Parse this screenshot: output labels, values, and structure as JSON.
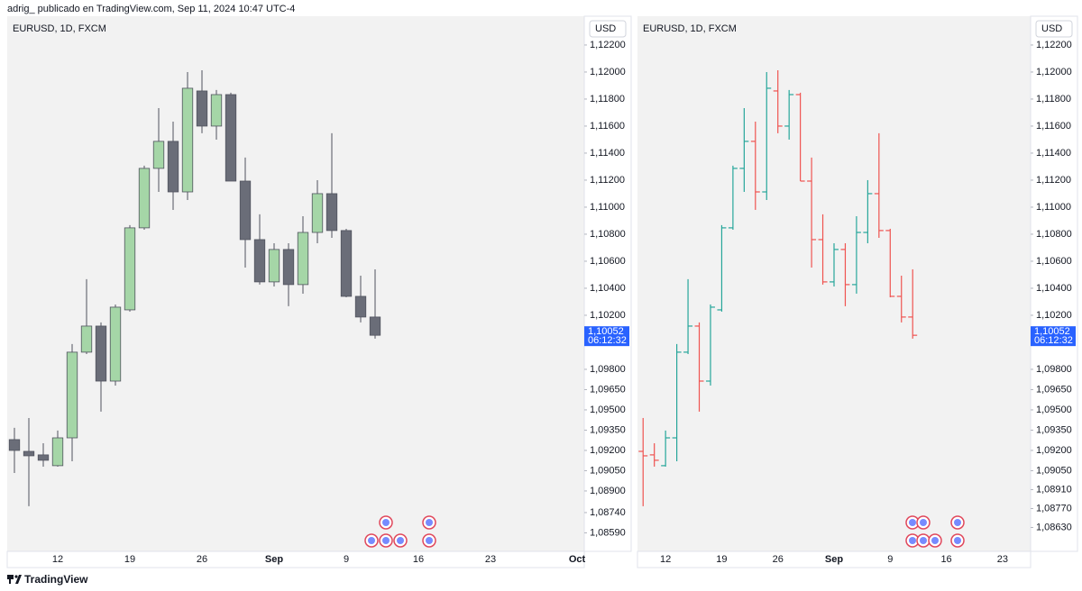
{
  "header": "adrig_ publicado en TradingView.com, Sep 11, 2024 10:47 UTC-4",
  "footer": "TradingView",
  "chart_data": [
    {
      "type": "candlestick",
      "title": "EURUSD, 1D, FXCM",
      "currency": "USD",
      "up_color": "#a5d6a7",
      "down_color": "#6a6d78",
      "wick_color": "#50535e",
      "categories": [
        null,
        null,
        null,
        "12",
        null,
        null,
        null,
        null,
        "19",
        null,
        null,
        null,
        null,
        "26",
        null,
        null,
        null,
        null,
        "Sep",
        null,
        null,
        null,
        null,
        "9",
        null,
        null,
        null,
        null,
        "16",
        null,
        null,
        null,
        null,
        "23",
        null,
        null,
        null,
        null,
        null,
        "Oct"
      ],
      "open": [
        1.0928,
        1.09193,
        1.09167,
        1.09087,
        1.09293,
        1.09927,
        1.1012,
        1.09713,
        1.1024,
        1.10847,
        1.11287,
        1.11487,
        1.11113,
        1.1186,
        1.116,
        1.11833,
        1.11193,
        1.1076,
        1.10447,
        1.10687,
        1.10427,
        1.10813,
        1.111,
        1.10827,
        1.1034,
        1.10187,
        null,
        null,
        null,
        null,
        null,
        null,
        null,
        null,
        null,
        null,
        null,
        null,
        null,
        null
      ],
      "high": [
        1.09367,
        1.0944,
        1.09253,
        1.09347,
        1.09987,
        1.10467,
        1.10147,
        1.1028,
        1.10867,
        1.11307,
        1.11733,
        1.11633,
        1.12,
        1.12013,
        1.11867,
        1.11847,
        1.11367,
        1.10947,
        1.10733,
        1.10733,
        1.10933,
        1.112,
        1.11547,
        1.1084,
        1.10493,
        1.1054,
        null,
        null,
        null,
        null,
        null,
        null,
        null,
        null,
        null,
        null,
        null,
        null,
        null,
        null
      ],
      "low": [
        1.09033,
        1.08787,
        1.0908,
        1.0908,
        1.0912,
        1.09913,
        1.09487,
        1.0968,
        1.10227,
        1.10833,
        1.11113,
        1.1098,
        1.11053,
        1.11547,
        1.115,
        1.11193,
        1.10553,
        1.10427,
        1.10413,
        1.10267,
        1.1036,
        1.10733,
        1.10773,
        1.10333,
        1.10147,
        1.10027,
        null,
        null,
        null,
        null,
        null,
        null,
        null,
        null,
        null,
        null,
        null,
        null,
        null,
        null
      ],
      "close": [
        1.092,
        1.0916,
        1.09127,
        1.09293,
        1.09927,
        1.1012,
        1.09713,
        1.1026,
        1.10847,
        1.11287,
        1.11487,
        1.11113,
        1.1188,
        1.116,
        1.11833,
        1.11193,
        1.1076,
        1.10447,
        1.10687,
        1.10427,
        1.10813,
        1.111,
        1.10827,
        1.1034,
        1.10187,
        1.10052,
        null,
        null,
        null,
        null,
        null,
        null,
        null,
        null,
        null,
        null,
        null,
        null,
        null,
        null
      ],
      "ylim": [
        1.08453,
        1.12413
      ],
      "yticks": [
        {
          "value": 1.122,
          "label": "1,12200"
        },
        {
          "value": 1.12,
          "label": "1,12000"
        },
        {
          "value": 1.118,
          "label": "1,11800"
        },
        {
          "value": 1.116,
          "label": "1,11600"
        },
        {
          "value": 1.114,
          "label": "1,11400"
        },
        {
          "value": 1.112,
          "label": "1,11200"
        },
        {
          "value": 1.11,
          "label": "1,11000"
        },
        {
          "value": 1.108,
          "label": "1,10800"
        },
        {
          "value": 1.106,
          "label": "1,10600"
        },
        {
          "value": 1.104,
          "label": "1,10400"
        },
        {
          "value": 1.102,
          "label": "1,10200"
        },
        {
          "value": 1.098,
          "label": "1,09800"
        },
        {
          "value": 1.0965,
          "label": "1,09650"
        },
        {
          "value": 1.095,
          "label": "1,09500"
        },
        {
          "value": 1.0935,
          "label": "1,09350"
        },
        {
          "value": 1.092,
          "label": "1,09200"
        },
        {
          "value": 1.0905,
          "label": "1,09050"
        },
        {
          "value": 1.089,
          "label": "1,08900"
        },
        {
          "value": 1.0874,
          "label": "1,08740"
        },
        {
          "value": 1.0859,
          "label": "1,08590"
        }
      ],
      "last_price": {
        "value": 1.10052,
        "label": "1,10052"
      },
      "countdown": "06:12:32",
      "last_color": "#2962ff"
    },
    {
      "type": "ohlc",
      "title": "EURUSD, 1D, FXCM",
      "currency": "USD",
      "up_color": "#26a69a",
      "down_color": "#ef5350",
      "categories": [
        null,
        null,
        "12",
        null,
        null,
        null,
        null,
        "19",
        null,
        null,
        null,
        null,
        "26",
        null,
        null,
        null,
        null,
        "Sep",
        null,
        null,
        null,
        null,
        "9",
        null,
        null,
        null,
        null,
        "16",
        null,
        null,
        null,
        null,
        "23",
        null,
        null
      ],
      "open": [
        1.09193,
        1.09167,
        1.09087,
        1.09293,
        1.09927,
        1.1012,
        1.09713,
        1.1024,
        1.10847,
        1.11287,
        1.11487,
        1.11113,
        1.1186,
        1.116,
        1.11833,
        1.11193,
        1.1076,
        1.10447,
        1.10687,
        1.10427,
        1.10813,
        1.111,
        1.10827,
        1.1034,
        1.10187,
        null,
        null,
        null,
        null,
        null,
        null,
        null,
        null,
        null,
        null
      ],
      "high": [
        1.0944,
        1.09253,
        1.09347,
        1.09987,
        1.10467,
        1.10147,
        1.1028,
        1.10867,
        1.11307,
        1.11733,
        1.11633,
        1.12,
        1.12013,
        1.11867,
        1.11847,
        1.11367,
        1.10947,
        1.10733,
        1.10733,
        1.10933,
        1.112,
        1.11547,
        1.1084,
        1.10493,
        1.1054,
        null,
        null,
        null,
        null,
        null,
        null,
        null,
        null,
        null,
        null
      ],
      "low": [
        1.08787,
        1.0908,
        1.0908,
        1.0912,
        1.09913,
        1.09487,
        1.0968,
        1.10227,
        1.10833,
        1.11113,
        1.1098,
        1.11053,
        1.11547,
        1.115,
        1.11193,
        1.10553,
        1.10427,
        1.10413,
        1.10267,
        1.1036,
        1.10733,
        1.10773,
        1.10333,
        1.10147,
        1.10027,
        null,
        null,
        null,
        null,
        null,
        null,
        null,
        null,
        null,
        null
      ],
      "close": [
        1.0916,
        1.09127,
        1.09293,
        1.09927,
        1.1012,
        1.09713,
        1.1026,
        1.10847,
        1.11287,
        1.11487,
        1.11113,
        1.1188,
        1.116,
        1.11833,
        1.11193,
        1.1076,
        1.10447,
        1.10687,
        1.10427,
        1.10813,
        1.111,
        1.10827,
        1.1034,
        1.10187,
        1.10052,
        null,
        null,
        null,
        null,
        null,
        null,
        null,
        null,
        null,
        null
      ],
      "ylim": [
        1.08453,
        1.12413
      ],
      "yticks": [
        {
          "value": 1.122,
          "label": "1,12200"
        },
        {
          "value": 1.12,
          "label": "1,12000"
        },
        {
          "value": 1.118,
          "label": "1,11800"
        },
        {
          "value": 1.116,
          "label": "1,11600"
        },
        {
          "value": 1.114,
          "label": "1,11400"
        },
        {
          "value": 1.112,
          "label": "1,11200"
        },
        {
          "value": 1.11,
          "label": "1,11000"
        },
        {
          "value": 1.108,
          "label": "1,10800"
        },
        {
          "value": 1.106,
          "label": "1,10600"
        },
        {
          "value": 1.104,
          "label": "1,10400"
        },
        {
          "value": 1.102,
          "label": "1,10200"
        },
        {
          "value": 1.098,
          "label": "1,09800"
        },
        {
          "value": 1.0965,
          "label": "1,09650"
        },
        {
          "value": 1.095,
          "label": "1,09500"
        },
        {
          "value": 1.0935,
          "label": "1,09350"
        },
        {
          "value": 1.092,
          "label": "1,09200"
        },
        {
          "value": 1.0905,
          "label": "1,09050"
        },
        {
          "value": 1.0891,
          "label": "1,08910"
        },
        {
          "value": 1.0877,
          "label": "1,08770"
        },
        {
          "value": 1.0863,
          "label": "1,08630"
        }
      ],
      "last_price": {
        "value": 1.10052,
        "label": "1,10052"
      },
      "countdown": "06:12:32",
      "last_color": "#2962ff"
    }
  ]
}
